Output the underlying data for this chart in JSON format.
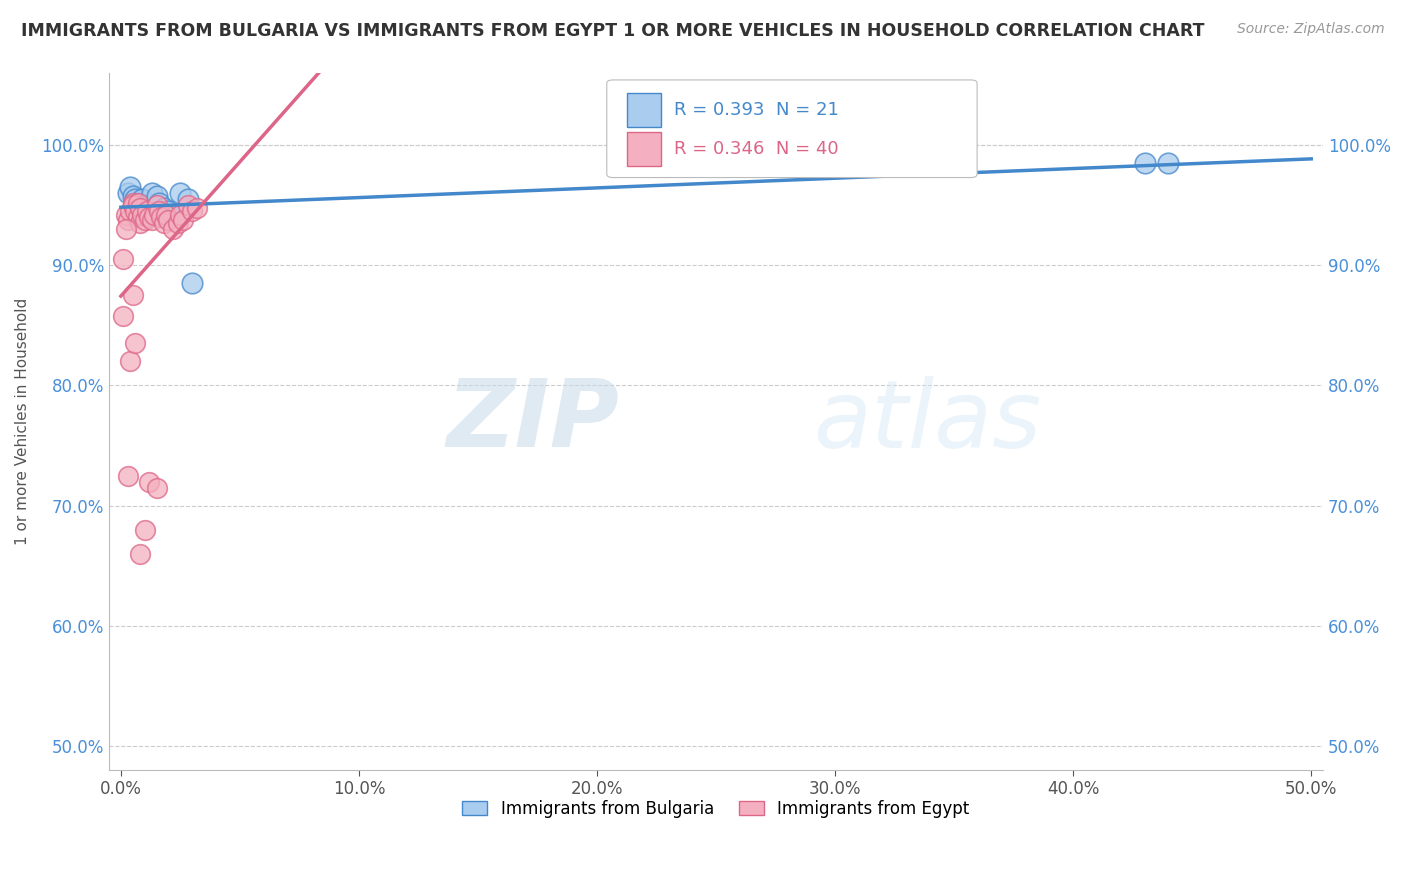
{
  "title": "IMMIGRANTS FROM BULGARIA VS IMMIGRANTS FROM EGYPT 1 OR MORE VEHICLES IN HOUSEHOLD CORRELATION CHART",
  "source": "Source: ZipAtlas.com",
  "ylabel": "1 or more Vehicles in Household",
  "xlim": [
    -0.005,
    0.505
  ],
  "ylim": [
    0.48,
    1.06
  ],
  "xticks": [
    0.0,
    0.1,
    0.2,
    0.3,
    0.4,
    0.5
  ],
  "xticklabels": [
    "0.0%",
    "10.0%",
    "20.0%",
    "30.0%",
    "40.0%",
    "50.0%"
  ],
  "yticks": [
    0.5,
    0.6,
    0.7,
    0.8,
    0.9,
    1.0
  ],
  "yticklabels": [
    "50.0%",
    "60.0%",
    "70.0%",
    "80.0%",
    "90.0%",
    "100.0%"
  ],
  "legend1_label": "Immigrants from Bulgaria",
  "legend2_label": "Immigrants from Egypt",
  "R_bulgaria": 0.393,
  "N_bulgaria": 21,
  "R_egypt": 0.346,
  "N_egypt": 40,
  "bulgaria_color": "#aaccee",
  "egypt_color": "#f4b0c0",
  "bulgaria_line_color": "#4488cc",
  "egypt_line_color": "#dd6688",
  "watermark_zip": "ZIP",
  "watermark_atlas": "atlas",
  "bulgaria_x": [
    0.003,
    0.004,
    0.005,
    0.006,
    0.007,
    0.008,
    0.009,
    0.01,
    0.011,
    0.012,
    0.013,
    0.015,
    0.016,
    0.018,
    0.02,
    0.022,
    0.025,
    0.028,
    0.03,
    0.43,
    0.44
  ],
  "bulgaria_y": [
    0.96,
    0.965,
    0.958,
    0.955,
    0.952,
    0.948,
    0.955,
    0.95,
    0.945,
    0.942,
    0.96,
    0.958,
    0.952,
    0.948,
    0.945,
    0.942,
    0.96,
    0.955,
    0.885,
    0.985,
    0.985
  ],
  "egypt_x": [
    0.001,
    0.002,
    0.003,
    0.004,
    0.005,
    0.005,
    0.006,
    0.007,
    0.007,
    0.008,
    0.008,
    0.009,
    0.01,
    0.011,
    0.012,
    0.013,
    0.014,
    0.015,
    0.016,
    0.017,
    0.018,
    0.019,
    0.02,
    0.022,
    0.024,
    0.025,
    0.026,
    0.028,
    0.03,
    0.032,
    0.001,
    0.002,
    0.003,
    0.004,
    0.005,
    0.006,
    0.008,
    0.01,
    0.012,
    0.015
  ],
  "egypt_y": [
    0.858,
    0.942,
    0.938,
    0.945,
    0.952,
    0.95,
    0.945,
    0.94,
    0.952,
    0.948,
    0.935,
    0.942,
    0.938,
    0.945,
    0.94,
    0.938,
    0.942,
    0.95,
    0.945,
    0.94,
    0.935,
    0.942,
    0.938,
    0.93,
    0.935,
    0.942,
    0.938,
    0.95,
    0.945,
    0.948,
    0.905,
    0.93,
    0.725,
    0.82,
    0.875,
    0.835,
    0.66,
    0.68,
    0.72,
    0.715
  ]
}
